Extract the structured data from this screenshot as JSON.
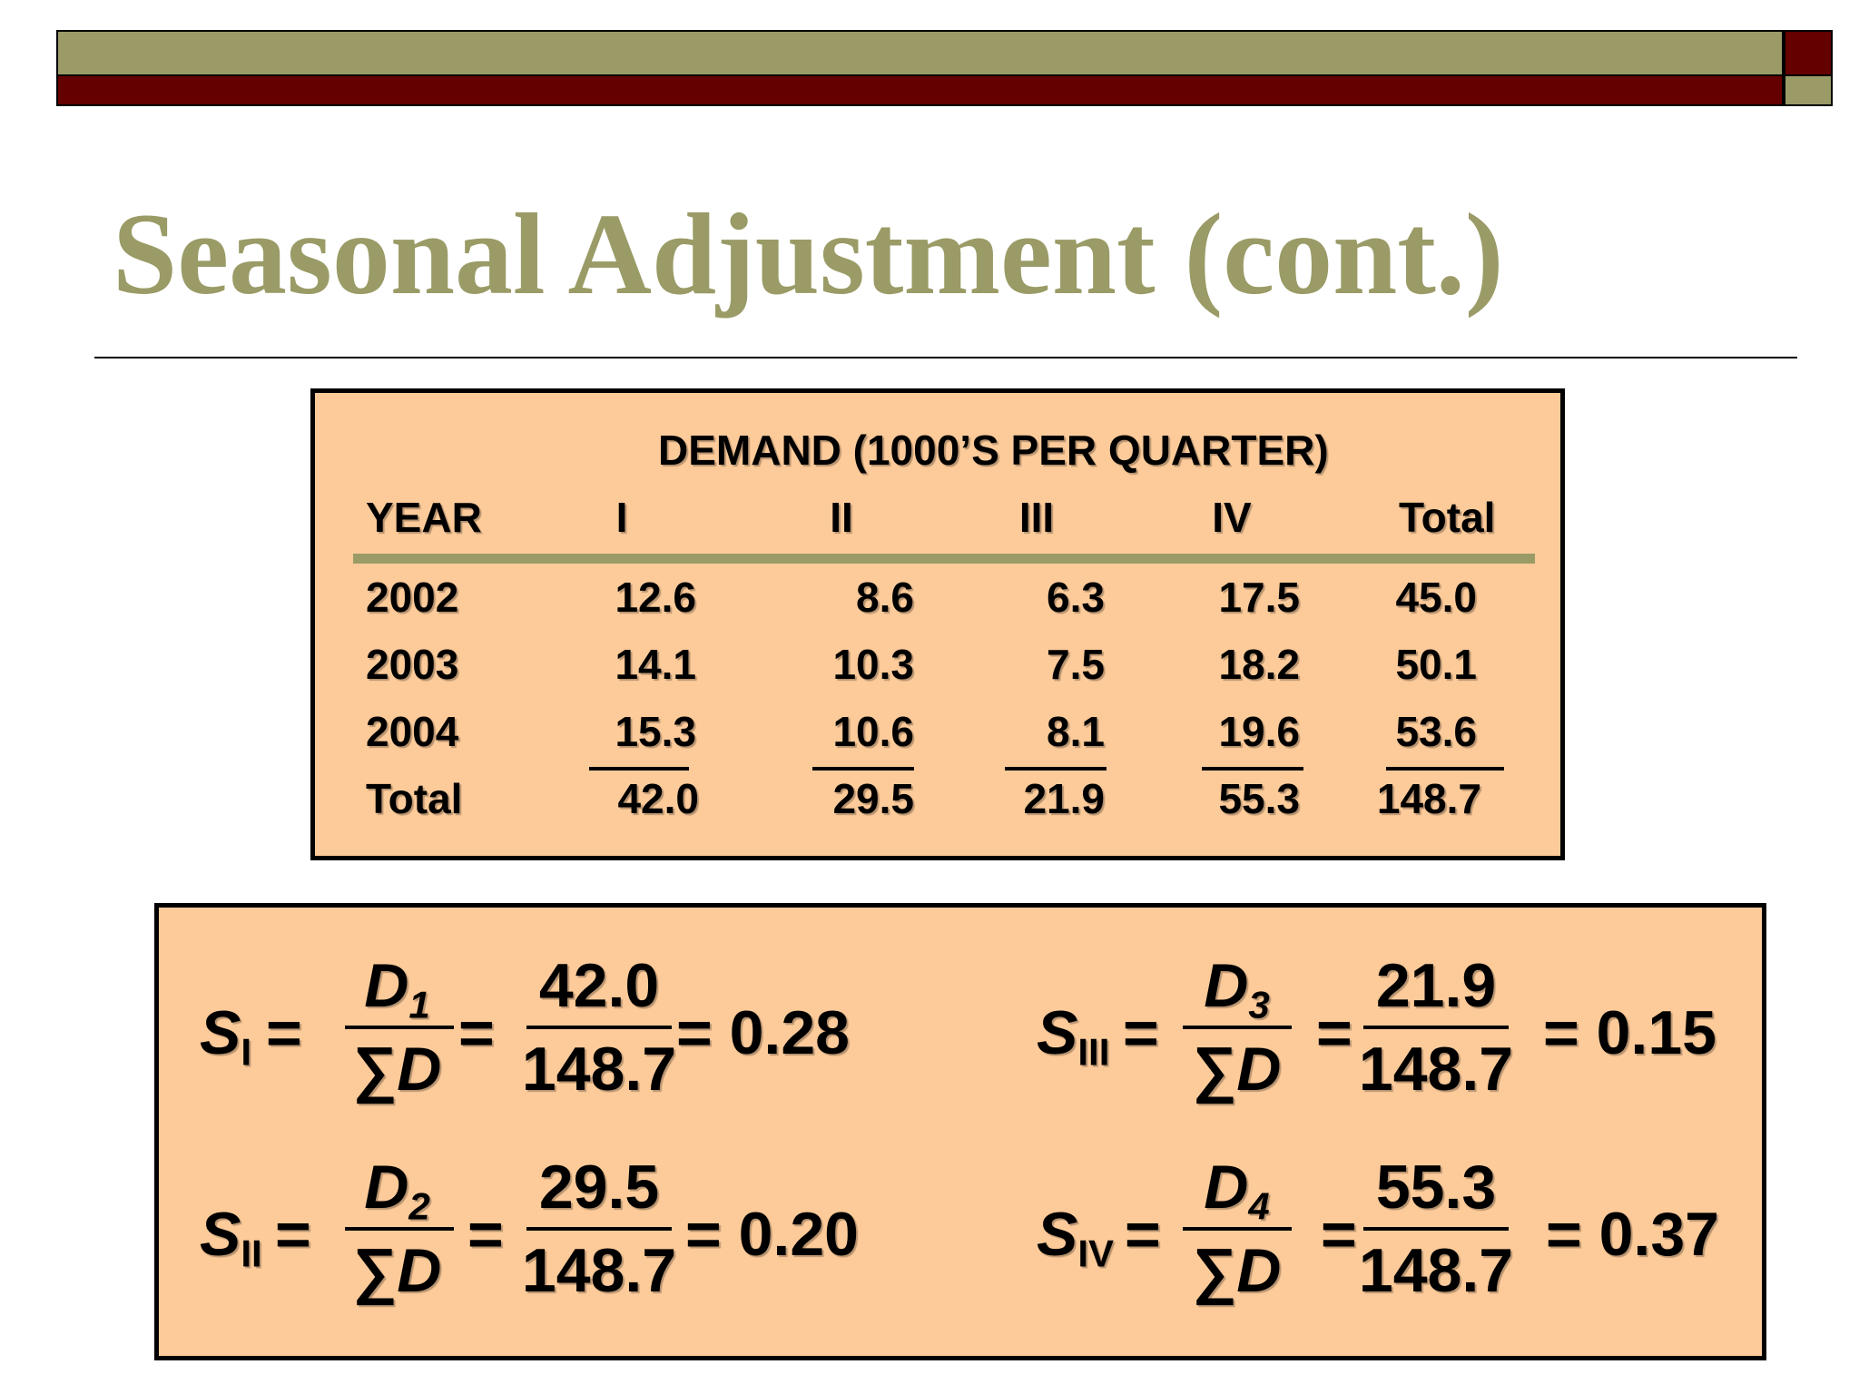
{
  "slide": {
    "title": "Seasonal Adjustment (cont.)",
    "colors": {
      "olive": "#9a9b66",
      "maroon": "#640000",
      "box_fill": "#fdcb9a"
    }
  },
  "table": {
    "caption": "DEMAND (1000’S PER QUARTER)",
    "headers": [
      "YEAR",
      "I",
      "II",
      "III",
      "IV",
      "Total"
    ],
    "rows": [
      {
        "year": "2002",
        "values": [
          "12.6",
          "8.6",
          "6.3",
          "17.5",
          "45.0"
        ]
      },
      {
        "year": "2003",
        "values": [
          "14.1",
          "10.3",
          "7.5",
          "18.2",
          "50.1"
        ]
      },
      {
        "year": "2004",
        "values": [
          "15.3",
          "10.6",
          "8.1",
          "19.6",
          "53.6"
        ]
      }
    ],
    "total_row": {
      "label": "Total",
      "values": [
        "42.0",
        "29.5",
        "21.9",
        "55.3",
        "148.7"
      ]
    }
  },
  "formulas": [
    {
      "symbol": "S",
      "index": "I",
      "num_var": "D",
      "num_sub": "1",
      "sum_sym": "∑",
      "den_var": "D",
      "eq": "=",
      "numerator": "42.0",
      "denominator": "148.7",
      "result": "= 0.28"
    },
    {
      "symbol": "S",
      "index": "II",
      "num_var": "D",
      "num_sub": "2",
      "sum_sym": "∑",
      "den_var": "D",
      "eq": "=",
      "numerator": "29.5",
      "denominator": "148.7",
      "result": "= 0.20"
    },
    {
      "symbol": "S",
      "index": "III",
      "num_var": "D",
      "num_sub": "3",
      "sum_sym": "∑",
      "den_var": "D",
      "eq": "=",
      "numerator": "21.9",
      "denominator": "148.7",
      "result": "= 0.15"
    },
    {
      "symbol": "S",
      "index": "IV",
      "num_var": "D",
      "num_sub": "4",
      "sum_sym": "∑",
      "den_var": "D",
      "eq": "=",
      "numerator": "55.3",
      "denominator": "148.7",
      "result": "= 0.37"
    }
  ]
}
